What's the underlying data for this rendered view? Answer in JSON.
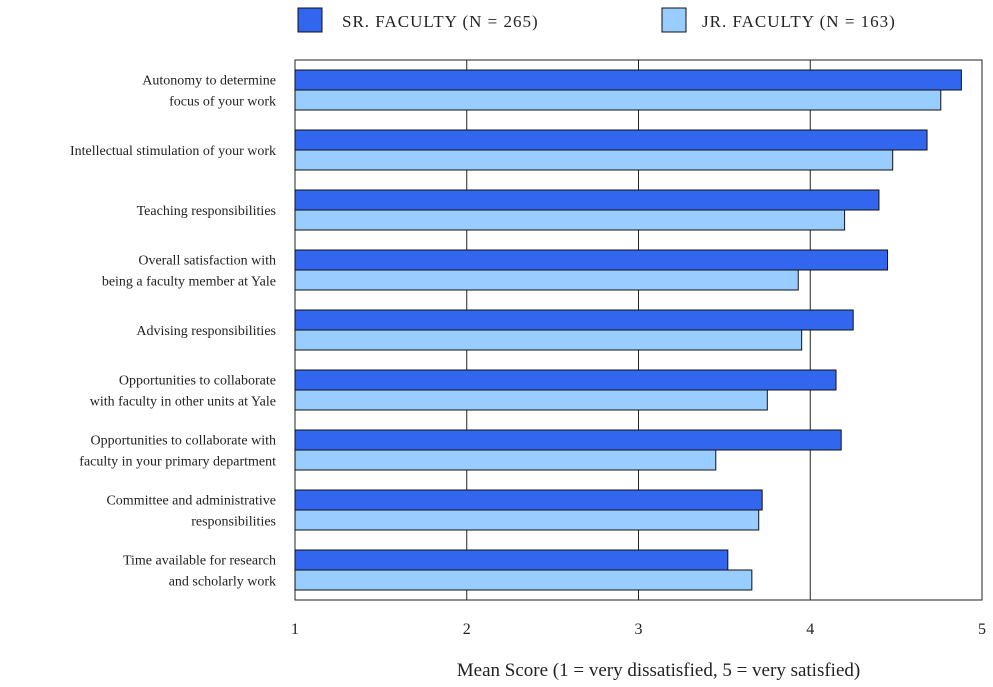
{
  "chart_data": {
    "type": "bar",
    "orientation": "horizontal",
    "categories": [
      [
        "Autonomy to determine",
        "focus of your work"
      ],
      [
        "Intellectual stimulation of your work"
      ],
      [
        "Teaching responsibilities"
      ],
      [
        "Overall satisfaction with",
        "being a faculty member at Yale"
      ],
      [
        "Advising responsibilities"
      ],
      [
        "Opportunities to collaborate",
        "with faculty in other units at Yale"
      ],
      [
        "Opportunities to collaborate with",
        "faculty in your primary department"
      ],
      [
        "Committee and administrative",
        "responsibilities"
      ],
      [
        "Time available for research",
        "and scholarly work"
      ]
    ],
    "series": [
      {
        "name": "SR. FACULTY (N = 265)",
        "color": "#3366ee",
        "values": [
          4.88,
          4.68,
          4.4,
          4.45,
          4.25,
          4.15,
          4.18,
          3.72,
          3.52
        ]
      },
      {
        "name": "JR. FACULTY (N = 163)",
        "color": "#99ccff",
        "values": [
          4.76,
          4.48,
          4.2,
          3.93,
          3.95,
          3.75,
          3.45,
          3.7,
          3.66
        ]
      }
    ],
    "xlabel": "Mean Score (1 = very dissatisfied, 5 = very satisfied)",
    "xlim": [
      1,
      5
    ],
    "ticks": [
      "1",
      "2",
      "3",
      "4",
      "5"
    ],
    "grid": "vertical",
    "legend_position": "top"
  }
}
